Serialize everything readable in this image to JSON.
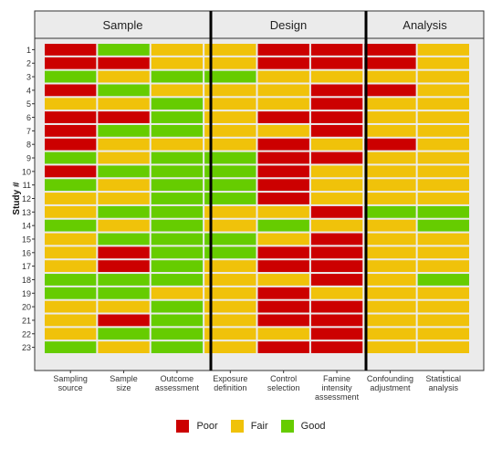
{
  "chart_data": {
    "type": "heatmap",
    "ylabel": "Study #",
    "groups": [
      {
        "name": "Sample",
        "columns": [
          "Sampling\nsource",
          "Sample\nsize",
          "Outcome\nassessment"
        ]
      },
      {
        "name": "Design",
        "columns": [
          "Exposure\ndefinition",
          "Control\nselection",
          "Famine\nintensity\nassessment"
        ]
      },
      {
        "name": "Analysis",
        "columns": [
          "Confounding\nadjustment",
          "Statistical\nanalysis"
        ]
      }
    ],
    "studies": [
      "1",
      "2",
      "3",
      "4",
      "5",
      "6",
      "7",
      "8",
      "9",
      "10",
      "11",
      "12",
      "13",
      "14",
      "15",
      "16",
      "17",
      "18",
      "19",
      "20",
      "21",
      "22",
      "23"
    ],
    "categories": [
      "Poor",
      "Fair",
      "Good"
    ],
    "colors": {
      "Poor": "#cc0000",
      "Fair": "#f0c20a",
      "Good": "#66cc00"
    },
    "values": [
      [
        "Poor",
        "Good",
        "Fair",
        "Fair",
        "Poor",
        "Poor",
        "Poor",
        "Fair"
      ],
      [
        "Poor",
        "Poor",
        "Fair",
        "Fair",
        "Poor",
        "Poor",
        "Poor",
        "Fair"
      ],
      [
        "Good",
        "Fair",
        "Good",
        "Good",
        "Fair",
        "Fair",
        "Fair",
        "Fair"
      ],
      [
        "Poor",
        "Good",
        "Fair",
        "Fair",
        "Fair",
        "Poor",
        "Poor",
        "Fair"
      ],
      [
        "Fair",
        "Fair",
        "Good",
        "Fair",
        "Fair",
        "Poor",
        "Fair",
        "Fair"
      ],
      [
        "Poor",
        "Poor",
        "Good",
        "Fair",
        "Poor",
        "Poor",
        "Fair",
        "Fair"
      ],
      [
        "Poor",
        "Good",
        "Good",
        "Fair",
        "Fair",
        "Poor",
        "Fair",
        "Fair"
      ],
      [
        "Poor",
        "Fair",
        "Fair",
        "Fair",
        "Poor",
        "Fair",
        "Poor",
        "Fair"
      ],
      [
        "Good",
        "Fair",
        "Good",
        "Good",
        "Poor",
        "Poor",
        "Fair",
        "Fair"
      ],
      [
        "Poor",
        "Good",
        "Good",
        "Good",
        "Poor",
        "Fair",
        "Fair",
        "Fair"
      ],
      [
        "Good",
        "Fair",
        "Good",
        "Good",
        "Poor",
        "Fair",
        "Fair",
        "Fair"
      ],
      [
        "Fair",
        "Fair",
        "Good",
        "Good",
        "Poor",
        "Fair",
        "Fair",
        "Fair"
      ],
      [
        "Fair",
        "Good",
        "Good",
        "Fair",
        "Fair",
        "Poor",
        "Good",
        "Good"
      ],
      [
        "Good",
        "Fair",
        "Good",
        "Fair",
        "Good",
        "Fair",
        "Fair",
        "Good"
      ],
      [
        "Fair",
        "Good",
        "Good",
        "Good",
        "Fair",
        "Poor",
        "Fair",
        "Fair"
      ],
      [
        "Fair",
        "Poor",
        "Good",
        "Good",
        "Poor",
        "Poor",
        "Fair",
        "Fair"
      ],
      [
        "Fair",
        "Poor",
        "Good",
        "Fair",
        "Poor",
        "Poor",
        "Fair",
        "Fair"
      ],
      [
        "Good",
        "Good",
        "Good",
        "Fair",
        "Fair",
        "Poor",
        "Fair",
        "Good"
      ],
      [
        "Good",
        "Good",
        "Fair",
        "Fair",
        "Poor",
        "Fair",
        "Fair",
        "Fair"
      ],
      [
        "Fair",
        "Fair",
        "Good",
        "Fair",
        "Poor",
        "Poor",
        "Fair",
        "Fair"
      ],
      [
        "Fair",
        "Poor",
        "Good",
        "Fair",
        "Poor",
        "Poor",
        "Fair",
        "Fair"
      ],
      [
        "Fair",
        "Good",
        "Good",
        "Fair",
        "Fair",
        "Poor",
        "Fair",
        "Fair"
      ],
      [
        "Good",
        "Fair",
        "Good",
        "Fair",
        "Poor",
        "Poor",
        "Fair",
        "Fair"
      ]
    ],
    "legend": {
      "position": "bottom",
      "entries": [
        "Poor",
        "Fair",
        "Good"
      ]
    },
    "panel_background": "#ebebeb",
    "grid": false
  }
}
